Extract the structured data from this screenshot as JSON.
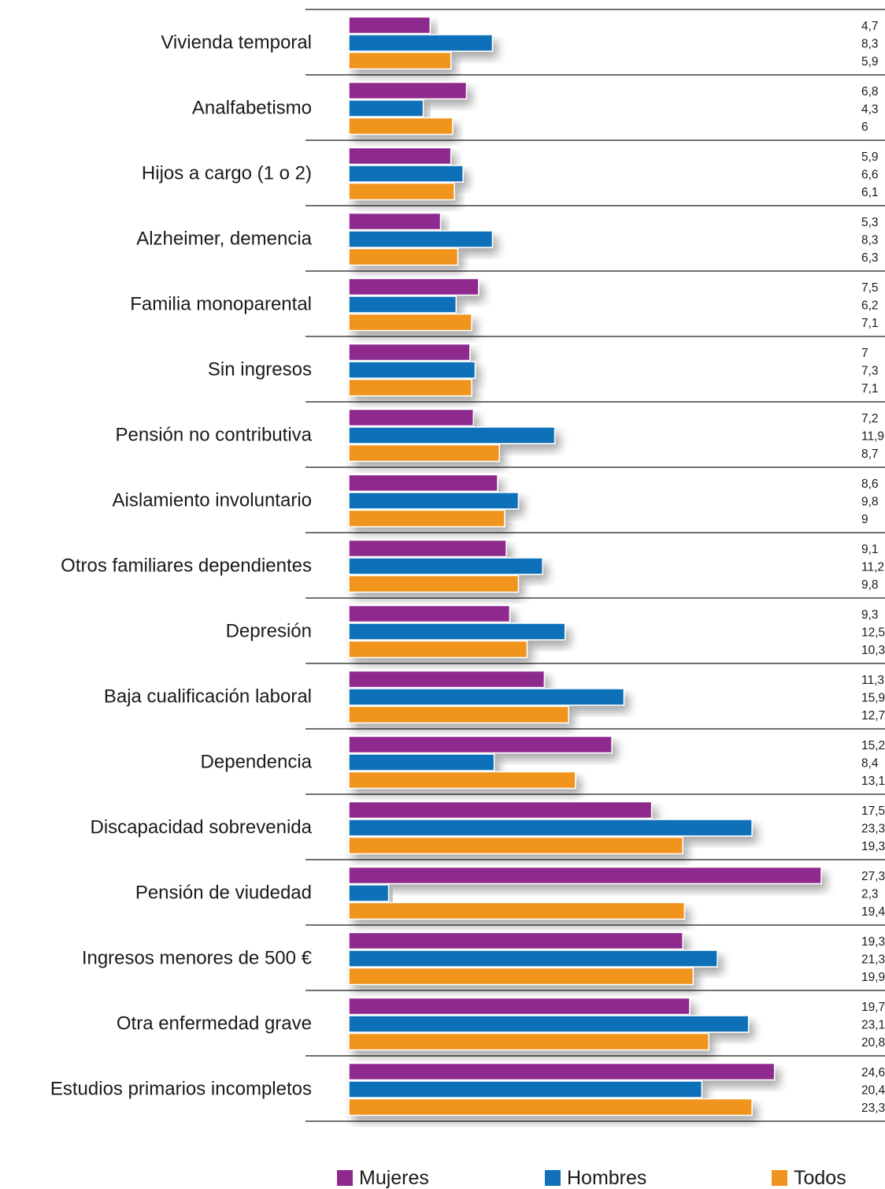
{
  "chart_data": {
    "type": "bar",
    "orientation": "horizontal",
    "title": "",
    "xlabel": "",
    "ylabel": "",
    "xlim": [
      0,
      27.3
    ],
    "grid": false,
    "legend_position": "bottom",
    "categories": [
      "Vivienda temporal",
      "Analfabetismo",
      "Hijos a cargo (1 o 2)",
      "Alzheimer, demencia",
      "Familia monoparental",
      "Sin ingresos",
      "Pensión no contributiva",
      "Aislamiento involuntario",
      "Otros familiares dependientes",
      "Depresión",
      "Baja cualificación laboral",
      "Dependencia",
      "Discapacidad sobrevenida",
      "Pensión de viudedad",
      "Ingresos menores de 500 €",
      "Otra enfermedad grave",
      "Estudios primarios incompletos"
    ],
    "series": [
      {
        "name": "Mujeres",
        "color": "#8e2a8e",
        "values": [
          4.7,
          6.8,
          5.9,
          5.3,
          7.5,
          7,
          7.2,
          8.6,
          9.1,
          9.3,
          11.3,
          15.2,
          17.5,
          27.3,
          19.3,
          19.7,
          24.6
        ],
        "labels": [
          "4,7",
          "6,8",
          "5,9",
          "5,3",
          "7,5",
          "7",
          "7,2",
          "8,6",
          "9,1",
          "9,3",
          "11,3",
          "15,2",
          "17,5",
          "27,3",
          "19,3",
          "19,7",
          "24,6"
        ]
      },
      {
        "name": "Hombres",
        "color": "#1170b8",
        "values": [
          8.3,
          4.3,
          6.6,
          8.3,
          6.2,
          7.3,
          11.9,
          9.8,
          11.2,
          12.5,
          15.9,
          8.4,
          23.3,
          2.3,
          21.3,
          23.1,
          20.4
        ],
        "labels": [
          "8,3",
          "4,3",
          "6,6",
          "8,3",
          "6,2",
          "7,3",
          "11,9",
          "9,8",
          "11,2",
          "12,5",
          "15,9",
          "8,4",
          "23,3",
          "2,3",
          "21,3",
          "23,1",
          "20,4"
        ]
      },
      {
        "name": "Todos",
        "color": "#f0941e",
        "values": [
          5.9,
          6,
          6.1,
          6.3,
          7.1,
          7.1,
          8.7,
          9,
          9.8,
          10.3,
          12.7,
          13.1,
          19.3,
          19.4,
          19.9,
          20.8,
          23.3
        ],
        "labels": [
          "5,9",
          "6",
          "6,1",
          "6,3",
          "7,1",
          "7,1",
          "8,7",
          "9",
          "9,8",
          "10,3",
          "12,7",
          "13,1",
          "19,3",
          "19,4",
          "19,9",
          "20,8",
          "23,3"
        ]
      }
    ]
  },
  "legend": {
    "items": [
      {
        "label": "Mujeres",
        "color": "#8e2a8e"
      },
      {
        "label": "Hombres",
        "color": "#1170b8"
      },
      {
        "label": "Todos",
        "color": "#f0941e"
      }
    ]
  }
}
